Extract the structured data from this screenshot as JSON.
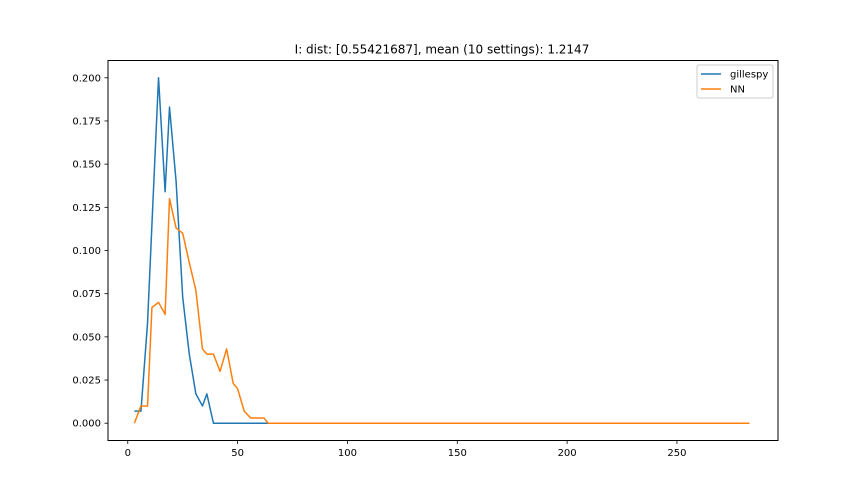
{
  "chart_data": {
    "type": "line",
    "title": "I: dist: [0.55421687], mean (10 settings): 1.2147",
    "xlabel": "",
    "ylabel": "",
    "xlim": [
      -9.0,
      296.0
    ],
    "ylim": [
      -0.01,
      0.21
    ],
    "xticks": [
      0,
      50,
      100,
      150,
      200,
      250
    ],
    "xtick_labels": [
      "0",
      "50",
      "100",
      "150",
      "200",
      "250"
    ],
    "yticks": [
      0.0,
      0.025,
      0.05,
      0.075,
      0.1,
      0.125,
      0.15,
      0.175,
      0.2
    ],
    "ytick_labels": [
      "0.000",
      "0.025",
      "0.050",
      "0.075",
      "0.100",
      "0.125",
      "0.150",
      "0.175",
      "0.200"
    ],
    "grid": false,
    "legend_position": "top-right",
    "series": [
      {
        "name": "gillespy",
        "color": "#1f77b4",
        "x": [
          3,
          6,
          9,
          11,
          14,
          17,
          19,
          22,
          25,
          28,
          31,
          34,
          36,
          39,
          42,
          45,
          48,
          50,
          53,
          56,
          59,
          62,
          64,
          67,
          70,
          73,
          76,
          78,
          81,
          84,
          87,
          90,
          92,
          95,
          98,
          101,
          104,
          106,
          109,
          112,
          115,
          118,
          120,
          123,
          126,
          129,
          132,
          134,
          137,
          140,
          143,
          146,
          148,
          151,
          154,
          157,
          160,
          162,
          165,
          168,
          171,
          174,
          176,
          179,
          182,
          185,
          188,
          190,
          193,
          196,
          199,
          202,
          204,
          207,
          210,
          213,
          216,
          218,
          221,
          224,
          227,
          230,
          232,
          235,
          238,
          241,
          244,
          246,
          249,
          252,
          255,
          258,
          260,
          263,
          266,
          269,
          272,
          274,
          277,
          280,
          283
        ],
        "y": [
          0.007,
          0.007,
          0.058,
          0.115,
          0.2,
          0.134,
          0.183,
          0.14,
          0.073,
          0.04,
          0.017,
          0.01,
          0.017,
          0.0,
          0.0,
          0.0,
          0.0,
          0.0,
          0.0,
          0.0,
          0.0,
          0.0,
          0.0,
          0.0,
          0.0,
          0.0,
          0.0,
          0.0,
          0.0,
          0.0,
          0.0,
          0.0,
          0.0,
          0.0,
          0.0,
          0.0,
          0.0,
          0.0,
          0.0,
          0.0,
          0.0,
          0.0,
          0.0,
          0.0,
          0.0,
          0.0,
          0.0,
          0.0,
          0.0,
          0.0,
          0.0,
          0.0,
          0.0,
          0.0,
          0.0,
          0.0,
          0.0,
          0.0,
          0.0,
          0.0,
          0.0,
          0.0,
          0.0,
          0.0,
          0.0,
          0.0,
          0.0,
          0.0,
          0.0,
          0.0,
          0.0,
          0.0,
          0.0,
          0.0,
          0.0,
          0.0,
          0.0,
          0.0,
          0.0,
          0.0,
          0.0,
          0.0,
          0.0,
          0.0,
          0.0,
          0.0,
          0.0,
          0.0,
          0.0,
          0.0,
          0.0,
          0.0,
          0.0,
          0.0,
          0.0,
          0.0,
          0.0,
          0.0,
          0.0,
          0.0,
          0.0
        ]
      },
      {
        "name": "NN",
        "color": "#ff7f0e",
        "x": [
          3,
          6,
          9,
          11,
          14,
          17,
          19,
          22,
          25,
          28,
          31,
          34,
          36,
          39,
          42,
          45,
          48,
          50,
          53,
          56,
          59,
          62,
          64,
          67,
          70,
          73,
          76,
          78,
          81,
          84,
          87,
          90,
          92,
          95,
          98,
          101,
          104,
          106,
          109,
          112,
          115,
          118,
          120,
          123,
          126,
          129,
          132,
          134,
          137,
          140,
          143,
          146,
          148,
          151,
          154,
          157,
          160,
          162,
          165,
          168,
          171,
          174,
          176,
          179,
          182,
          185,
          188,
          190,
          193,
          196,
          199,
          202,
          204,
          207,
          210,
          213,
          216,
          218,
          221,
          224,
          227,
          230,
          232,
          235,
          238,
          241,
          244,
          246,
          249,
          252,
          255,
          258,
          260,
          263,
          266,
          269,
          272,
          274,
          277,
          280,
          283
        ],
        "y": [
          0.0,
          0.01,
          0.01,
          0.067,
          0.07,
          0.063,
          0.13,
          0.113,
          0.11,
          0.093,
          0.077,
          0.043,
          0.04,
          0.04,
          0.03,
          0.043,
          0.023,
          0.02,
          0.007,
          0.003,
          0.003,
          0.003,
          0.0,
          0.0,
          0.0,
          0.0,
          0.0,
          0.0,
          0.0,
          0.0,
          0.0,
          0.0,
          0.0,
          0.0,
          0.0,
          0.0,
          0.0,
          0.0,
          0.0,
          0.0,
          0.0,
          0.0,
          0.0,
          0.0,
          0.0,
          0.0,
          0.0,
          0.0,
          0.0,
          0.0,
          0.0,
          0.0,
          0.0,
          0.0,
          0.0,
          0.0,
          0.0,
          0.0,
          0.0,
          0.0,
          0.0,
          0.0,
          0.0,
          0.0,
          0.0,
          0.0,
          0.0,
          0.0,
          0.0,
          0.0,
          0.0,
          0.0,
          0.0,
          0.0,
          0.0,
          0.0,
          0.0,
          0.0,
          0.0,
          0.0,
          0.0,
          0.0,
          0.0,
          0.0,
          0.0,
          0.0,
          0.0,
          0.0,
          0.0,
          0.0,
          0.0,
          0.0,
          0.0,
          0.0,
          0.0,
          0.0,
          0.0,
          0.0,
          0.0,
          0.0,
          0.0
        ]
      }
    ]
  }
}
